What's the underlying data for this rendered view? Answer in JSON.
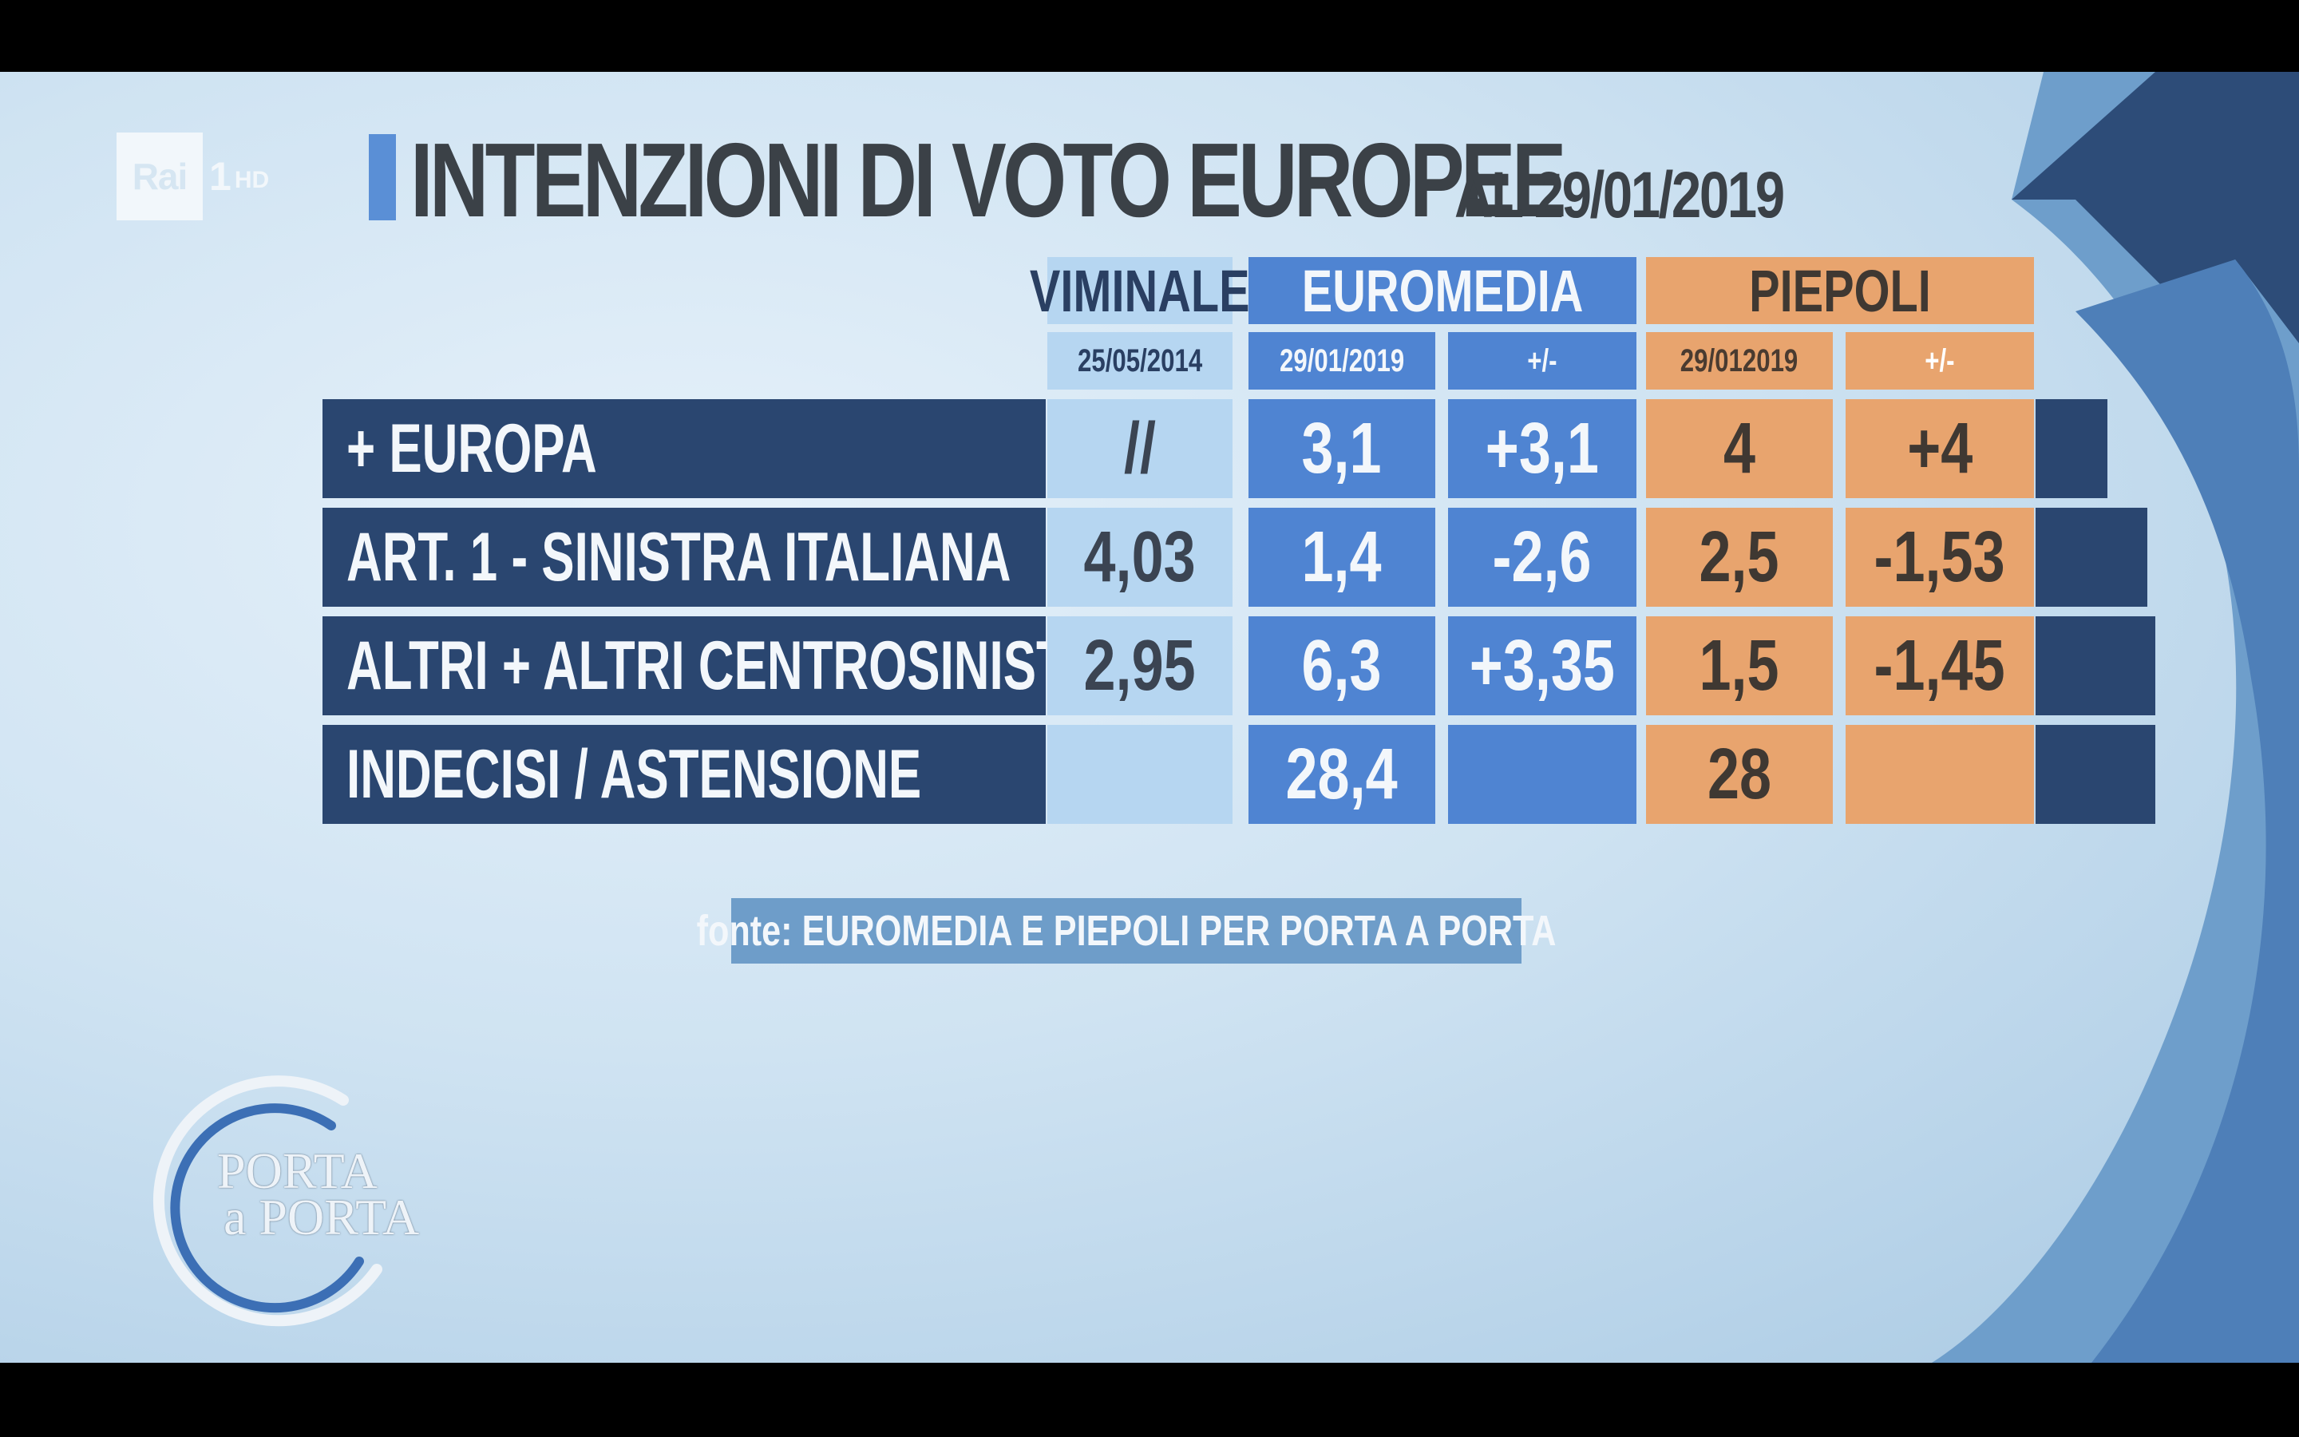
{
  "channel": {
    "brand": "Rai",
    "number": "1",
    "quality": "HD"
  },
  "title": {
    "main": "INTENZIONI DI VOTO EUROPEE",
    "date": "AL 29/01/2019"
  },
  "table": {
    "sources": [
      {
        "name": "VIMINALE",
        "columns": [
          "25/05/2014"
        ]
      },
      {
        "name": "EUROMEDIA",
        "columns": [
          "29/01/2019",
          "+/-"
        ]
      },
      {
        "name": "PIEPOLI",
        "columns": [
          "29/012019",
          "+/-"
        ]
      }
    ],
    "rows": [
      {
        "label": "+ EUROPA",
        "viminale": "//",
        "euromedia": "3,1",
        "euromedia_delta": "+3,1",
        "piepoli": "4",
        "piepoli_delta": "+4"
      },
      {
        "label": "ART. 1 - SINISTRA ITALIANA",
        "viminale": "4,03",
        "euromedia": "1,4",
        "euromedia_delta": "-2,6",
        "piepoli": "2,5",
        "piepoli_delta": "-1,53"
      },
      {
        "label": "ALTRI + ALTRI CENTROSINISTRA",
        "viminale": "2,95",
        "euromedia": "6,3",
        "euromedia_delta": "+3,35",
        "piepoli": "1,5",
        "piepoli_delta": "-1,45"
      },
      {
        "label": "INDECISI / ASTENSIONE",
        "viminale": "",
        "euromedia": "28,4",
        "euromedia_delta": "",
        "piepoli": "28",
        "piepoli_delta": ""
      }
    ]
  },
  "source_note": "fonte: EUROMEDIA E PIEPOLI PER PORTA A PORTA",
  "show_logo": {
    "line1": "PORTA",
    "line2": "a PORTA"
  },
  "colors": {
    "viminale": "#b6d6f1",
    "euromedia": "#4f84d2",
    "piepoli": "#e8a46e",
    "label_bg": "#2a4670",
    "title_accent": "#5a8fd6"
  }
}
